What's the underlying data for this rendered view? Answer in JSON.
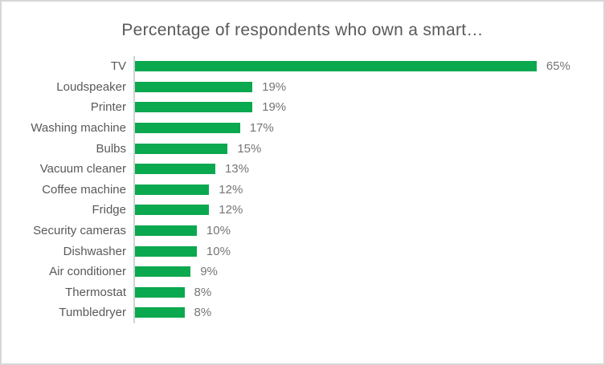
{
  "chart": {
    "title": "Percentage of respondents who own a smart…"
  },
  "colors": {
    "bar_fill": "#0aa84f",
    "title_text": "#595959",
    "category_text": "#595959",
    "value_text": "#757575",
    "axis_line": "#d2d2d2",
    "frame_border": "#d7d7d7",
    "background": "#ffffff"
  },
  "chart_data": {
    "type": "bar",
    "orientation": "horizontal",
    "title": "Percentage of respondents who own a smart…",
    "categories": [
      "TV",
      "Loudspeaker",
      "Printer",
      "Washing machine",
      "Bulbs",
      "Vacuum cleaner",
      "Coffee machine",
      "Fridge",
      "Security cameras",
      "Dishwasher",
      "Air conditioner",
      "Thermostat",
      "Tumbledryer"
    ],
    "values": [
      65,
      19,
      19,
      17,
      15,
      13,
      12,
      12,
      10,
      10,
      9,
      8,
      8
    ],
    "value_labels": [
      "65%",
      "19%",
      "19%",
      "17%",
      "15%",
      "13%",
      "12%",
      "12%",
      "10%",
      "10%",
      "9%",
      "8%",
      "8%"
    ],
    "value_suffix": "%",
    "xlabel": "",
    "ylabel": "",
    "xlim": [
      0,
      65
    ],
    "grid": false,
    "legend": "none",
    "data_labels": "outside-end"
  }
}
